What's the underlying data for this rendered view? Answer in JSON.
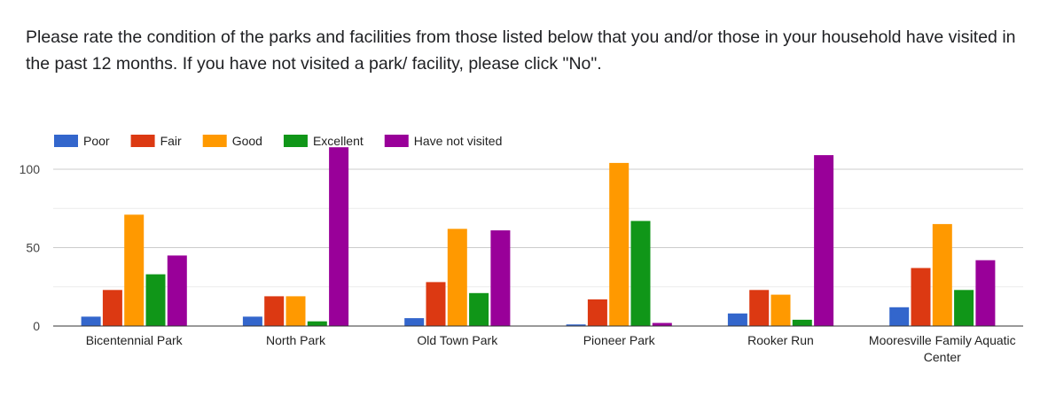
{
  "question": {
    "text": "Please rate the condition of the parks and facilities from those listed below that you and/or those in your household have visited in the past 12 months. If you have not visited a park/ facility, please click \"No\"."
  },
  "chart_data": {
    "type": "bar",
    "title": "",
    "xlabel": "",
    "ylabel": "",
    "ylim": [
      0,
      120
    ],
    "yticks": [
      0,
      50,
      100
    ],
    "grid": true,
    "legend_position": "top-left",
    "categories": [
      "Bicentennial Park",
      "North Park",
      "Old Town Park",
      "Pioneer Park",
      "Rooker Run",
      "Mooresville Family Aquatic Center"
    ],
    "series": [
      {
        "name": "Poor",
        "color": "#3366cc",
        "values": [
          6,
          6,
          5,
          1,
          8,
          12
        ]
      },
      {
        "name": "Fair",
        "color": "#dc3912",
        "values": [
          23,
          19,
          28,
          17,
          23,
          37
        ]
      },
      {
        "name": "Good",
        "color": "#ff9900",
        "values": [
          71,
          19,
          62,
          104,
          20,
          65
        ]
      },
      {
        "name": "Excellent",
        "color": "#109618",
        "values": [
          33,
          3,
          21,
          67,
          4,
          23
        ]
      },
      {
        "name": "Have not visited",
        "color": "#990099",
        "values": [
          45,
          114,
          61,
          2,
          109,
          42
        ]
      }
    ]
  }
}
